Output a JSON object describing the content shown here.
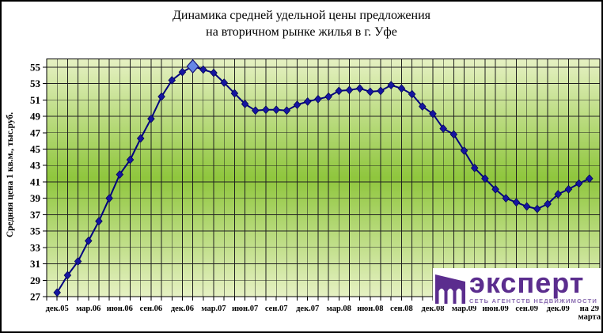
{
  "figure": {
    "title_line1": "Динамика средней удельной цены предложения",
    "title_line2": "на вторичном рынке жилья в г. Уфе"
  },
  "chart_data": {
    "type": "line",
    "title": "Динамика средней удельной цены предложения на вторичном рынке жилья в г. Уфе",
    "xlabel": "",
    "ylabel": "Средняя цена 1 кв.м., тыс.руб.",
    "ylim": [
      27,
      56
    ],
    "yticks": [
      27,
      29,
      31,
      33,
      35,
      37,
      39,
      41,
      43,
      45,
      47,
      49,
      51,
      53,
      55
    ],
    "grid": true,
    "legend": false,
    "x_tick_labels": [
      "дек.05",
      "мар.06",
      "июн.06",
      "сен.06",
      "дек.06",
      "мар.07",
      "июн.07",
      "сен.07",
      "дек.07",
      "мар.08",
      "июн.08",
      "сен.08",
      "дек.08",
      "мар.09",
      "июн.09",
      "сен.09",
      "дек.09",
      [
        "на 29",
        "марта"
      ]
    ],
    "months_per_tick": 3,
    "values": [
      27.5,
      29.6,
      31.3,
      33.8,
      36.2,
      39.0,
      41.9,
      43.7,
      46.3,
      48.7,
      51.4,
      53.4,
      54.4,
      55.1,
      54.7,
      54.3,
      53.1,
      51.8,
      50.5,
      49.7,
      49.8,
      49.8,
      49.7,
      50.4,
      50.8,
      51.1,
      51.4,
      52.1,
      52.2,
      52.4,
      52.0,
      52.1,
      52.8,
      52.4,
      51.7,
      50.2,
      49.3,
      47.5,
      46.8,
      44.8,
      42.7,
      41.4,
      40.1,
      39.0,
      38.5,
      38.0,
      37.7,
      38.3,
      39.5,
      40.1,
      40.8,
      41.4
    ],
    "highlight_index": 13,
    "marker": "diamond",
    "colors": {
      "line": "#000080",
      "marker_fill": "#1515a0",
      "marker_edge": "#000050",
      "highlight_fill": "#6687e6",
      "highlight_edge": "#1a1a80",
      "grid": "#1f1f1f",
      "plot_bg_top": "#e6f1c3",
      "plot_bg_mid": "#8fc63d",
      "plot_bg_bottom": "#e6f1c3"
    }
  },
  "logo": {
    "text": "эксперт",
    "subtitle": "СЕТЬ АГЕНТСТВ НЕДВИЖИМОСТИ",
    "brand_color": "#5b2d8e",
    "subtitle_color": "#8a6cb0",
    "icon": "building-arches"
  }
}
